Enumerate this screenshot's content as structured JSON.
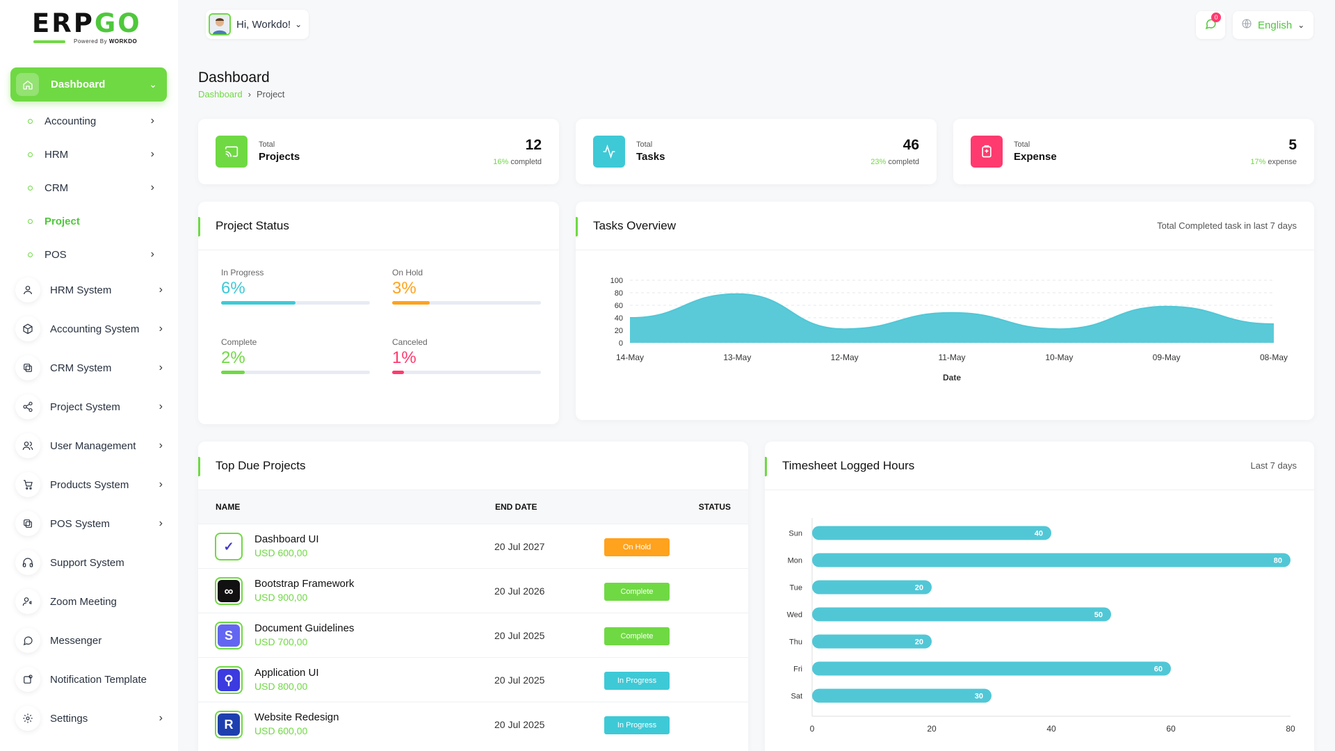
{
  "brand": {
    "logo_main": "ERP",
    "logo_accent": "GO",
    "powered_by": "Powered By",
    "powered_brand": "WORKDO"
  },
  "colors": {
    "accent": "#6fd943",
    "teal": "#51c7d6",
    "orange": "#ffa21d",
    "pink": "#ff3a6e",
    "blue": "#3ec9d6"
  },
  "sidebar": {
    "active": {
      "label": "Dashboard",
      "icon": "home-icon"
    },
    "sub_items": [
      {
        "label": "Accounting",
        "has_chevron": true
      },
      {
        "label": "HRM",
        "has_chevron": true
      },
      {
        "label": "CRM",
        "has_chevron": true
      },
      {
        "label": "Project",
        "has_chevron": false,
        "active": true
      },
      {
        "label": "POS",
        "has_chevron": true
      }
    ],
    "items": [
      {
        "label": "HRM System",
        "icon": "user-icon",
        "has_chevron": true
      },
      {
        "label": "Accounting System",
        "icon": "box-icon",
        "has_chevron": true
      },
      {
        "label": "CRM System",
        "icon": "layers-icon",
        "has_chevron": true
      },
      {
        "label": "Project System",
        "icon": "share-icon",
        "has_chevron": true
      },
      {
        "label": "User Management",
        "icon": "users-icon",
        "has_chevron": true
      },
      {
        "label": "Products System",
        "icon": "cart-icon",
        "has_chevron": true
      },
      {
        "label": "POS System",
        "icon": "layers-icon",
        "has_chevron": true
      },
      {
        "label": "Support System",
        "icon": "headphones-icon",
        "has_chevron": false
      },
      {
        "label": "Zoom Meeting",
        "icon": "user-video-icon",
        "has_chevron": false
      },
      {
        "label": "Messenger",
        "icon": "chat-icon",
        "has_chevron": false
      },
      {
        "label": "Notification Template",
        "icon": "notification-icon",
        "has_chevron": false
      },
      {
        "label": "Settings",
        "icon": "gear-icon",
        "has_chevron": true
      }
    ]
  },
  "topbar": {
    "greeting": "Hi, Workdo!",
    "notif_count": "0",
    "language": "English"
  },
  "page": {
    "title": "Dashboard",
    "breadcrumb": [
      "Dashboard",
      "Project"
    ]
  },
  "stats": [
    {
      "small": "Total",
      "label": "Projects",
      "value": "12",
      "pct": "16%",
      "pct_text": "completd",
      "icon": "cast-icon",
      "color": "#6fd943"
    },
    {
      "small": "Total",
      "label": "Tasks",
      "value": "46",
      "pct": "23%",
      "pct_text": "completd",
      "icon": "activity-icon",
      "color": "#3ec9d6"
    },
    {
      "small": "Total",
      "label": "Expense",
      "value": "5",
      "pct": "17%",
      "pct_text": "expense",
      "icon": "clipboard-icon",
      "color": "#ff3a6e"
    }
  ],
  "project_status": {
    "title": "Project Status",
    "items": [
      {
        "label": "In Progress",
        "value": "6%",
        "fraction": 0.5,
        "color": "#3ec9d6"
      },
      {
        "label": "On Hold",
        "value": "3%",
        "fraction": 0.25,
        "color": "#ffa21d"
      },
      {
        "label": "Complete",
        "value": "2%",
        "fraction": 0.16,
        "color": "#6fd943"
      },
      {
        "label": "Canceled",
        "value": "1%",
        "fraction": 0.08,
        "color": "#ff3a6e"
      }
    ]
  },
  "tasks_overview": {
    "title": "Tasks Overview",
    "note": "Total Completed task in last 7 days"
  },
  "timesheet": {
    "title": "Timesheet Logged Hours",
    "note": "Last 7 days"
  },
  "due_projects": {
    "title": "Top Due Projects",
    "columns": [
      "NAME",
      "END DATE",
      "STATUS"
    ],
    "rows": [
      {
        "name": "Dashboard UI",
        "price": "USD 600,00",
        "date": "20 Jul 2027",
        "status": "On Hold",
        "status_color": "#ffa21d",
        "logo_color": "#ffffff",
        "logo_glyph": "✓",
        "logo_text_color": "#4338ca"
      },
      {
        "name": "Bootstrap Framework",
        "price": "USD 900,00",
        "date": "20 Jul 2026",
        "status": "Complete",
        "status_color": "#6fd943",
        "logo_color": "#111111",
        "logo_glyph": "∞",
        "logo_text_color": "#ffffff"
      },
      {
        "name": "Document Guidelines",
        "price": "USD 700,00",
        "date": "20 Jul 2025",
        "status": "Complete",
        "status_color": "#6fd943",
        "logo_color": "#6366f1",
        "logo_glyph": "S",
        "logo_text_color": "#ffffff"
      },
      {
        "name": "Application UI",
        "price": "USD 800,00",
        "date": "20 Jul 2025",
        "status": "In Progress",
        "status_color": "#3ec9d6",
        "logo_color": "#3b3be0",
        "logo_glyph": "⚲",
        "logo_text_color": "#ffffff"
      },
      {
        "name": "Website Redesign",
        "price": "USD 600,00",
        "date": "20 Jul 2025",
        "status": "In Progress",
        "status_color": "#3ec9d6",
        "logo_color": "#1e40af",
        "logo_glyph": "R",
        "logo_text_color": "#ffffff"
      }
    ]
  },
  "chart_data": [
    {
      "type": "area",
      "x": [
        "14-May",
        "13-May",
        "12-May",
        "11-May",
        "10-May",
        "09-May",
        "08-May"
      ],
      "series": [
        {
          "values": [
            40,
            78,
            22,
            48,
            22,
            58,
            30
          ]
        }
      ],
      "xlabel": "Date",
      "ylabel": "",
      "yticks": [
        0,
        20,
        40,
        60,
        80,
        100
      ],
      "ylim": [
        0,
        100
      ],
      "color": "#51c7d6",
      "grid": true
    },
    {
      "type": "bar",
      "orientation": "horizontal",
      "categories": [
        "Sun",
        "Mon",
        "Tue",
        "Wed",
        "Thu",
        "Fri",
        "Sat"
      ],
      "values": [
        40,
        80,
        20,
        50,
        20,
        60,
        30
      ],
      "xticks": [
        0,
        20,
        40,
        60,
        80
      ],
      "xlim": [
        0,
        80
      ],
      "color": "#51c7d6"
    }
  ]
}
